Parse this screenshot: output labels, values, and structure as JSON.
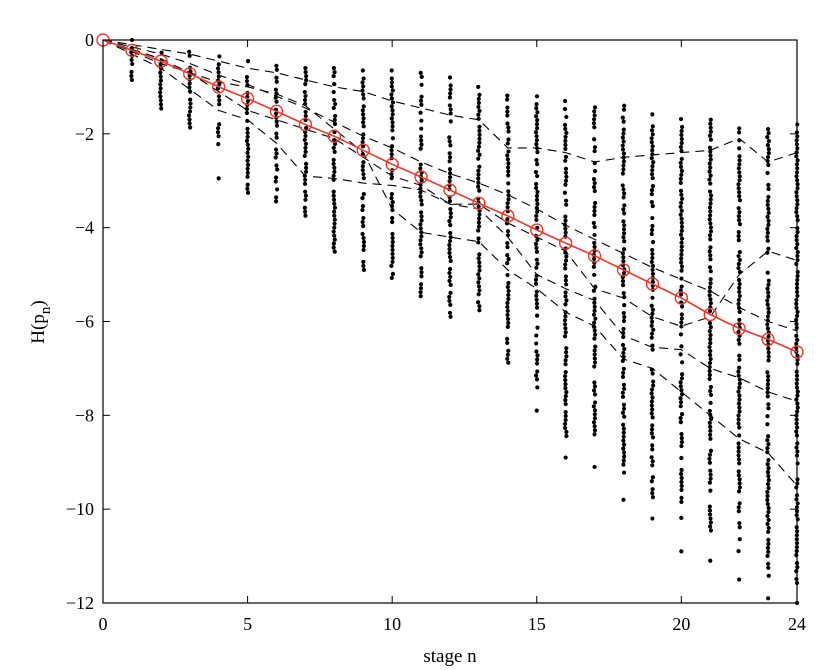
{
  "chart_data": {
    "type": "scatter",
    "xlabel": "stage n",
    "ylabel": "H(p_n)",
    "ylabel_main": "H(p",
    "ylabel_sub": "n",
    "ylabel_close": ")",
    "xlim": [
      0,
      24
    ],
    "ylim": [
      -12,
      0
    ],
    "grid": false,
    "xticks": [
      "0",
      "5",
      "10",
      "15",
      "20",
      "24"
    ],
    "xtick_values": [
      0,
      5,
      10,
      15,
      20,
      24
    ],
    "yticks": [
      "0",
      "−2",
      "−4",
      "−6",
      "−8",
      "−10",
      "−12"
    ],
    "ytick_values": [
      0,
      -2,
      -4,
      -6,
      -8,
      -10,
      -12
    ],
    "colors": {
      "mean": "#e8392b",
      "points": "#000000",
      "dashed": "#000000"
    },
    "series": [
      {
        "style": "red-line-circle-markers",
        "x": [
          0,
          1,
          2,
          3,
          4,
          5,
          6,
          7,
          8,
          9,
          10,
          11,
          12,
          13,
          14,
          15,
          16,
          17,
          18,
          19,
          20,
          21,
          22,
          23,
          24
        ],
        "y": [
          0,
          -0.22,
          -0.45,
          -0.72,
          -1.0,
          -1.25,
          -1.52,
          -1.8,
          -2.05,
          -2.35,
          -2.65,
          -2.92,
          -3.2,
          -3.48,
          -3.75,
          -4.05,
          -4.33,
          -4.6,
          -4.9,
          -5.2,
          -5.5,
          -5.85,
          -6.15,
          -6.38,
          -6.65
        ]
      },
      {
        "style": "dashed-sample-path",
        "x": [
          0,
          1,
          2,
          3,
          4,
          5,
          6,
          7,
          8,
          9,
          10,
          11,
          12,
          13,
          14,
          15,
          16,
          17,
          18,
          19,
          20,
          21,
          22,
          23,
          24
        ],
        "y": [
          0,
          -0.1,
          -0.2,
          -0.3,
          -0.45,
          -0.6,
          -0.7,
          -0.85,
          -1.0,
          -1.1,
          -1.3,
          -1.45,
          -1.6,
          -1.7,
          -2.3,
          -2.3,
          -2.4,
          -2.6,
          -2.5,
          -2.45,
          -2.4,
          -2.35,
          -2.1,
          -2.6,
          -2.4
        ]
      },
      {
        "style": "dashed-sample-path",
        "x": [
          0,
          1,
          2,
          3,
          4,
          5,
          6,
          7,
          8,
          9,
          10,
          11,
          12,
          13,
          14,
          15,
          16,
          17,
          18,
          19,
          20,
          21,
          22,
          23,
          24
        ],
        "y": [
          0,
          -0.3,
          -0.6,
          -1.05,
          -1.5,
          -1.7,
          -2.2,
          -2.9,
          -2.95,
          -3.05,
          -3.1,
          -3.2,
          -3.5,
          -3.6,
          -4.2,
          -5.0,
          -5.3,
          -5.55,
          -6.3,
          -6.55,
          -6.6,
          -7.0,
          -7.2,
          -7.5,
          -7.7
        ]
      },
      {
        "style": "dashed-sample-path",
        "x": [
          0,
          1,
          2,
          3,
          4,
          5,
          6,
          7,
          8,
          9,
          10,
          11,
          12,
          13,
          14,
          15,
          16,
          17,
          18,
          19,
          20,
          21,
          22,
          23,
          24
        ],
        "y": [
          0,
          -0.25,
          -0.5,
          -0.7,
          -0.9,
          -1.0,
          -1.15,
          -1.4,
          -1.9,
          -2.4,
          -3.6,
          -4.1,
          -4.2,
          -4.3,
          -4.9,
          -5.3,
          -5.8,
          -6.1,
          -6.8,
          -7.0,
          -7.5,
          -8.0,
          -8.5,
          -8.8,
          -9.5
        ]
      },
      {
        "style": "dashed-sample-path",
        "x": [
          0,
          1,
          2,
          3,
          4,
          5,
          6,
          7,
          8,
          9,
          10,
          11,
          12,
          13,
          14,
          15,
          16,
          17,
          18,
          19,
          20,
          21,
          22,
          23,
          24
        ],
        "y": [
          0,
          -0.2,
          -0.4,
          -0.7,
          -1.1,
          -1.5,
          -1.7,
          -1.9,
          -2.1,
          -2.5,
          -2.9,
          -3.1,
          -3.5,
          -3.5,
          -3.9,
          -4.2,
          -4.5,
          -5.3,
          -5.5,
          -5.9,
          -6.1,
          -5.9,
          -5.0,
          -4.5,
          -4.7
        ]
      },
      {
        "style": "dashed-sample-path",
        "x": [
          0,
          1,
          2,
          3,
          4,
          5,
          6,
          7,
          8,
          9,
          10,
          11,
          12,
          13,
          14,
          15,
          16,
          17,
          18,
          19,
          20,
          21,
          22,
          23,
          24
        ],
        "y": [
          0,
          -0.15,
          -0.3,
          -0.5,
          -0.75,
          -0.95,
          -1.2,
          -1.45,
          -1.75,
          -2.05,
          -2.3,
          -2.6,
          -2.85,
          -3.05,
          -3.3,
          -3.6,
          -3.95,
          -4.25,
          -4.55,
          -4.85,
          -5.1,
          -5.35,
          -5.7,
          -6.0,
          -6.2
        ]
      }
    ],
    "scatter_columns": [
      {
        "x": 1,
        "min": -0.85,
        "max": 0
      },
      {
        "x": 2,
        "min": -1.5,
        "max": -0.1
      },
      {
        "x": 3,
        "min": -1.9,
        "max": -0.25
      },
      {
        "x": 4,
        "min": -2.3,
        "max": -0.35,
        "outliers": [
          -2.95
        ]
      },
      {
        "x": 5,
        "min": -3.3,
        "max": -0.45
      },
      {
        "x": 6,
        "min": -3.5,
        "max": -0.55
      },
      {
        "x": 7,
        "min": -3.8,
        "max": -0.6
      },
      {
        "x": 8,
        "min": -4.6,
        "max": -0.6
      },
      {
        "x": 9,
        "min": -4.9,
        "max": -0.65
      },
      {
        "x": 10,
        "min": -5.2,
        "max": -0.65
      },
      {
        "x": 11,
        "min": -5.5,
        "max": -0.7
      },
      {
        "x": 12,
        "min": -5.9,
        "max": -0.8
      },
      {
        "x": 13,
        "min": -5.8,
        "max": -1.0
      },
      {
        "x": 14,
        "min": -6.9,
        "max": -1.1
      },
      {
        "x": 15,
        "min": -7.5,
        "max": -1.2,
        "outliers": [
          -7.9
        ]
      },
      {
        "x": 16,
        "min": -8.5,
        "max": -1.3,
        "outliers": [
          -8.9
        ]
      },
      {
        "x": 17,
        "min": -8.5,
        "max": -1.35,
        "outliers": [
          -9.1
        ]
      },
      {
        "x": 18,
        "min": -9.3,
        "max": -1.4,
        "outliers": [
          -9.8
        ]
      },
      {
        "x": 19,
        "min": -9.8,
        "max": -1.5,
        "outliers": [
          -10.2
        ]
      },
      {
        "x": 20,
        "min": -10.3,
        "max": -1.6,
        "outliers": [
          -10.9
        ]
      },
      {
        "x": 21,
        "min": -10.6,
        "max": -1.7,
        "outliers": [
          -11.1
        ]
      },
      {
        "x": 22,
        "min": -11.0,
        "max": -1.8,
        "outliers": [
          -11.5
        ]
      },
      {
        "x": 23,
        "min": -11.5,
        "max": -1.9,
        "outliers": [
          -11.9
        ]
      },
      {
        "x": 24,
        "min": -11.6,
        "max": -1.8,
        "outliers": [
          -12.0
        ]
      }
    ]
  }
}
